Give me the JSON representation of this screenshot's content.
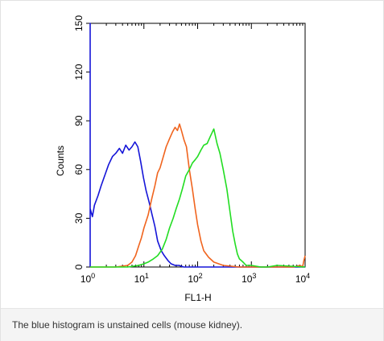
{
  "chart_data": {
    "type": "line",
    "xlabel": "FL1-H",
    "ylabel": "Counts",
    "x_scale": "log",
    "xlim": [
      1,
      10000
    ],
    "ylim": [
      0,
      150
    ],
    "x_ticks": [
      {
        "value": 1,
        "base": "10",
        "exp": "0"
      },
      {
        "value": 10,
        "base": "10",
        "exp": "1"
      },
      {
        "value": 100,
        "base": "10",
        "exp": "2"
      },
      {
        "value": 1000,
        "base": "10",
        "exp": "3"
      },
      {
        "value": 10000,
        "base": "10",
        "exp": "4"
      }
    ],
    "y_ticks": [
      "0",
      "30",
      "60",
      "90",
      "120",
      "150"
    ],
    "grid": false,
    "legend": "none",
    "series": [
      {
        "color": "#1515d8",
        "x": [
          1.0,
          1.0,
          1.0,
          1.1,
          1.2,
          1.4,
          1.6,
          1.9,
          2.2,
          2.6,
          3.0,
          3.5,
          4.0,
          4.6,
          5.3,
          6.0,
          6.8,
          7.7,
          8.7,
          9.8,
          11,
          12.5,
          14,
          16,
          18,
          21,
          24,
          28,
          32,
          38,
          45,
          55,
          70,
          100,
          200,
          10000
        ],
        "values": [
          0,
          150,
          36,
          31,
          38,
          44,
          50,
          57,
          63,
          68,
          70,
          73,
          70,
          75,
          72,
          74,
          77,
          74,
          65,
          55,
          47,
          40,
          33,
          25,
          16,
          10,
          7,
          4,
          2,
          1,
          1,
          0,
          0,
          0,
          0,
          0
        ]
      },
      {
        "color": "#f0641e",
        "x": [
          1.0,
          3.0,
          5.0,
          6.0,
          7.0,
          8.0,
          9.0,
          10,
          12,
          14,
          16,
          18,
          20,
          23,
          26,
          30,
          34,
          38,
          42,
          46,
          50,
          56,
          62,
          70,
          80,
          90,
          100,
          115,
          130,
          160,
          200,
          300,
          600,
          1000,
          3000,
          6000,
          8000,
          9000,
          9500,
          10000
        ],
        "values": [
          0,
          0,
          1,
          3,
          7,
          13,
          18,
          24,
          32,
          42,
          50,
          58,
          61,
          68,
          74,
          79,
          83,
          86,
          84,
          88,
          84,
          78,
          74,
          60,
          48,
          36,
          26,
          16,
          10,
          6,
          3,
          1,
          0,
          0,
          0,
          0,
          1,
          0,
          4,
          7
        ]
      },
      {
        "color": "#22dd22",
        "x": [
          1.0,
          5.0,
          8.0,
          10,
          12,
          15,
          18,
          22,
          26,
          30,
          35,
          40,
          46,
          52,
          60,
          70,
          80,
          90,
          100,
          115,
          130,
          150,
          170,
          200,
          230,
          260,
          300,
          350,
          400,
          450,
          500,
          550,
          600,
          700,
          800,
          1000,
          1500,
          2000,
          3000,
          10000
        ],
        "values": [
          0,
          0,
          1,
          2,
          3,
          5,
          7,
          11,
          17,
          24,
          30,
          36,
          42,
          48,
          56,
          60,
          64,
          66,
          68,
          72,
          75,
          76,
          80,
          85,
          76,
          70,
          60,
          48,
          34,
          22,
          14,
          8,
          5,
          3,
          1,
          1,
          0,
          0,
          1,
          0
        ]
      }
    ]
  },
  "caption": "The blue histogram is unstained cells (mouse kidney)."
}
